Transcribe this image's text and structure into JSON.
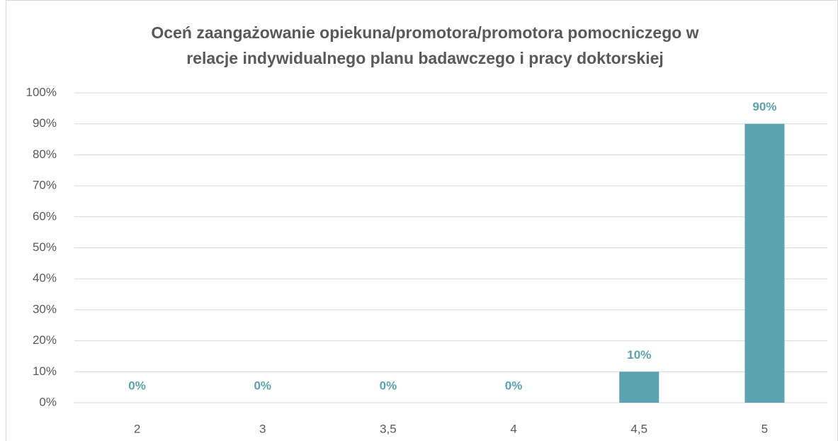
{
  "chart_data": {
    "type": "bar",
    "title": [
      "Oceń zaangażowanie opiekuna/promotora/promotora pomocniczego w",
      "relacje indywidualnego planu badawczego i pracy doktorskiej"
    ],
    "categories": [
      "2",
      "3",
      "3,5",
      "4",
      "4,5",
      "5"
    ],
    "values": [
      0,
      0,
      0,
      0,
      10,
      90
    ],
    "value_labels": [
      "0%",
      "0%",
      "0%",
      "0%",
      "10%",
      "90%"
    ],
    "color": "#5ba3ae",
    "ylim": [
      0,
      100
    ],
    "yticks": [
      {
        "value": 0,
        "label": "0%"
      },
      {
        "value": 10,
        "label": "10%"
      },
      {
        "value": 20,
        "label": "20%"
      },
      {
        "value": 30,
        "label": "30%"
      },
      {
        "value": 40,
        "label": "40%"
      },
      {
        "value": 50,
        "label": "50%"
      },
      {
        "value": 60,
        "label": "60%"
      },
      {
        "value": 70,
        "label": "70%"
      },
      {
        "value": 80,
        "label": "80%"
      },
      {
        "value": 90,
        "label": "90%"
      },
      {
        "value": 100,
        "label": "100%"
      }
    ],
    "grid": true
  }
}
